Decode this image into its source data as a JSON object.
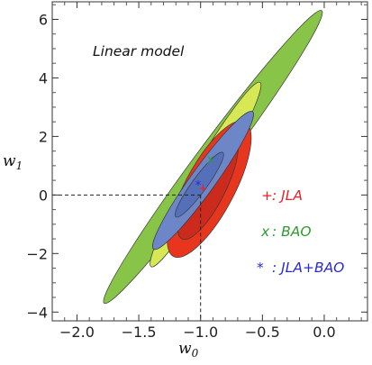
{
  "chart_data": {
    "type": "contour",
    "title": "",
    "annotation": "Linear model",
    "xlabel_base": "w",
    "xlabel_sub": "0",
    "ylabel_base": "w",
    "ylabel_sub": "1",
    "xlim": [
      -2.2,
      0.35
    ],
    "ylim": [
      -4.3,
      6.6
    ],
    "xticks": [
      -2.0,
      -1.5,
      -1.0,
      -0.5,
      0.0
    ],
    "xtick_labels": [
      "−2.0",
      "−1.5",
      "−1.0",
      "−0.5",
      "0.0"
    ],
    "yticks": [
      -4,
      -2,
      0,
      2,
      4,
      6
    ],
    "ytick_labels": [
      "−4",
      "−2",
      "0",
      "2",
      "4",
      "6"
    ],
    "reference_point": {
      "w0": -1.0,
      "w1": 0.0
    },
    "legend": [
      {
        "symbol": "+",
        "text": ": JLA",
        "color": "#e8232a"
      },
      {
        "symbol": "x",
        "text": ": BAO",
        "color": "#2e9a2e"
      },
      {
        "symbol": "*",
        "text": ": JLA+BAO",
        "color": "#2a2ad6"
      }
    ],
    "series": [
      {
        "name": "BAO",
        "level": "2σ",
        "color": "#88c447",
        "center": [
          -0.9,
          1.3
        ],
        "major_end": [
          -1.78,
          -3.7
        ],
        "minor_halfwidth": 0.12
      },
      {
        "name": "BAO",
        "level": "1σ",
        "color": "#d7e855",
        "center": [
          -0.96,
          0.7
        ],
        "major_end": [
          -1.4,
          -2.45
        ],
        "minor_halfwidth": 0.1
      },
      {
        "name": "JLA",
        "level": "2σ",
        "color": "#e8361e",
        "center": [
          -0.93,
          0.2
        ],
        "major_end": [
          -1.22,
          -2.1
        ],
        "minor_halfwidth": 0.2
      },
      {
        "name": "JLA",
        "level": "1σ",
        "color": "#cc2a1c",
        "center": [
          -0.94,
          0.25
        ],
        "major_end": [
          -1.15,
          -1.5
        ],
        "minor_halfwidth": 0.14
      },
      {
        "name": "JLA+BAO",
        "level": "2σ",
        "color": "#6c86c8",
        "center": [
          -0.98,
          0.5
        ],
        "major_end": [
          -1.38,
          -1.85
        ],
        "minor_halfwidth": 0.1
      },
      {
        "name": "JLA+BAO",
        "level": "1σ",
        "color": "#5570b8",
        "center": [
          -1.01,
          0.35
        ],
        "major_end": [
          -1.2,
          -0.75
        ],
        "minor_halfwidth": 0.06
      }
    ],
    "best_fit_points": [
      {
        "name": "JLA",
        "w0": -0.98,
        "w1": 0.25
      },
      {
        "name": "BAO",
        "w0": -0.92,
        "w1": 1.25
      },
      {
        "name": "JLA+BAO",
        "w0": -1.02,
        "w1": 0.35
      }
    ],
    "grid": false
  }
}
